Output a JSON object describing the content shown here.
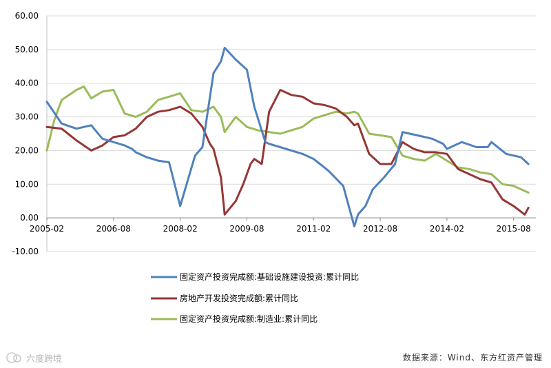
{
  "chart_data": {
    "type": "line",
    "title": "",
    "xlabel": "",
    "ylabel": "",
    "ylim": [
      -10,
      60
    ],
    "y_ticks": [
      "60.00",
      "50.00",
      "40.00",
      "30.00",
      "20.00",
      "10.00",
      "0.00",
      "-10.00"
    ],
    "x_ticks": [
      "2005-02",
      "2006-08",
      "2008-02",
      "2009-08",
      "2011-02",
      "2012-08",
      "2014-02",
      "2015-08"
    ],
    "grid": "horizontal",
    "legend_position": "bottom",
    "series": [
      {
        "name": "固定资产投资完成额:基础设施建设投资:累计同比",
        "color": "#4f81bd",
        "x": [
          "2005-02",
          "2005-06",
          "2005-10",
          "2006-02",
          "2006-05",
          "2006-08",
          "2006-11",
          "2007-01",
          "2007-02",
          "2007-05",
          "2007-08",
          "2007-11",
          "2008-02",
          "2008-04",
          "2008-06",
          "2008-08",
          "2008-11",
          "2009-01",
          "2009-02",
          "2009-05",
          "2009-08",
          "2009-10",
          "2010-01",
          "2010-02",
          "2010-05",
          "2010-08",
          "2010-11",
          "2011-02",
          "2011-06",
          "2011-10",
          "2012-01",
          "2012-02",
          "2012-04",
          "2012-06",
          "2012-09",
          "2012-12",
          "2013-02",
          "2013-06",
          "2013-10",
          "2014-01",
          "2014-02",
          "2014-06",
          "2014-10",
          "2015-01",
          "2015-02",
          "2015-06",
          "2015-10",
          "2015-12"
        ],
        "values": [
          34.5,
          28.0,
          26.5,
          27.5,
          23.5,
          22.5,
          21.5,
          20.5,
          19.5,
          18.0,
          17.0,
          16.5,
          3.5,
          11.0,
          18.5,
          21.0,
          43.0,
          46.5,
          50.5,
          47.0,
          44.0,
          33.0,
          22.5,
          22.0,
          21.0,
          20.0,
          19.0,
          17.5,
          14.0,
          9.5,
          -2.5,
          1.0,
          3.5,
          8.5,
          12.0,
          16.0,
          25.5,
          24.5,
          23.5,
          22.0,
          20.5,
          22.5,
          21.0,
          21.0,
          22.5,
          19.0,
          18.0,
          16.0
        ]
      },
      {
        "name": "房地产开发投资完成额:累计同比",
        "color": "#953734",
        "x": [
          "2005-02",
          "2005-06",
          "2005-10",
          "2006-02",
          "2006-05",
          "2006-08",
          "2006-11",
          "2007-02",
          "2007-05",
          "2007-08",
          "2007-11",
          "2008-02",
          "2008-05",
          "2008-08",
          "2008-10",
          "2008-11",
          "2009-01",
          "2009-02",
          "2009-05",
          "2009-07",
          "2009-09",
          "2009-10",
          "2009-12",
          "2010-02",
          "2010-05",
          "2010-08",
          "2010-11",
          "2011-02",
          "2011-05",
          "2011-08",
          "2011-11",
          "2012-01",
          "2012-02",
          "2012-05",
          "2012-08",
          "2012-11",
          "2013-02",
          "2013-05",
          "2013-08",
          "2013-11",
          "2014-02",
          "2014-05",
          "2014-08",
          "2014-11",
          "2015-02",
          "2015-05",
          "2015-08",
          "2015-11",
          "2015-12"
        ],
        "values": [
          27.0,
          26.5,
          23.0,
          20.0,
          21.5,
          24.0,
          24.5,
          26.5,
          30.0,
          31.5,
          32.0,
          33.0,
          31.0,
          27.0,
          22.0,
          20.5,
          12.0,
          1.0,
          5.0,
          10.0,
          16.0,
          17.5,
          16.0,
          31.5,
          38.0,
          36.5,
          36.0,
          34.0,
          33.5,
          32.5,
          30.0,
          27.5,
          28.0,
          19.0,
          16.0,
          16.0,
          22.5,
          20.5,
          19.5,
          19.5,
          19.0,
          14.5,
          13.0,
          11.5,
          10.5,
          5.5,
          3.5,
          1.0,
          3.0
        ]
      },
      {
        "name": "固定资产投资完成额:制造业:累计同比",
        "color": "#9bbb59",
        "x": [
          "2005-02",
          "2005-04",
          "2005-06",
          "2005-10",
          "2005-12",
          "2006-02",
          "2006-05",
          "2006-08",
          "2006-11",
          "2007-02",
          "2007-05",
          "2007-08",
          "2007-11",
          "2008-02",
          "2008-05",
          "2008-08",
          "2008-11",
          "2009-01",
          "2009-02",
          "2009-05",
          "2009-08",
          "2009-11",
          "2010-02",
          "2010-05",
          "2010-08",
          "2010-11",
          "2011-02",
          "2011-05",
          "2011-08",
          "2011-11",
          "2012-01",
          "2012-02",
          "2012-05",
          "2012-08",
          "2012-11",
          "2013-02",
          "2013-05",
          "2013-08",
          "2013-11",
          "2014-02",
          "2014-05",
          "2014-08",
          "2014-11",
          "2015-02",
          "2015-05",
          "2015-08",
          "2015-11",
          "2015-12"
        ],
        "values": [
          20.0,
          29.0,
          35.0,
          38.0,
          39.0,
          35.5,
          37.5,
          38.0,
          31.0,
          30.0,
          31.5,
          35.0,
          36.0,
          37.0,
          32.0,
          31.5,
          33.0,
          30.0,
          25.5,
          30.0,
          27.0,
          26.0,
          25.5,
          25.0,
          26.0,
          27.0,
          29.5,
          30.5,
          31.5,
          31.0,
          31.5,
          31.0,
          25.0,
          24.5,
          24.0,
          18.5,
          17.5,
          17.0,
          19.0,
          17.0,
          15.0,
          14.5,
          13.5,
          13.0,
          10.0,
          9.5,
          8.0,
          7.5
        ]
      }
    ]
  },
  "footer": {
    "watermark": "六度跨境",
    "source": "数据来源：Wind、东方红资产管理"
  }
}
